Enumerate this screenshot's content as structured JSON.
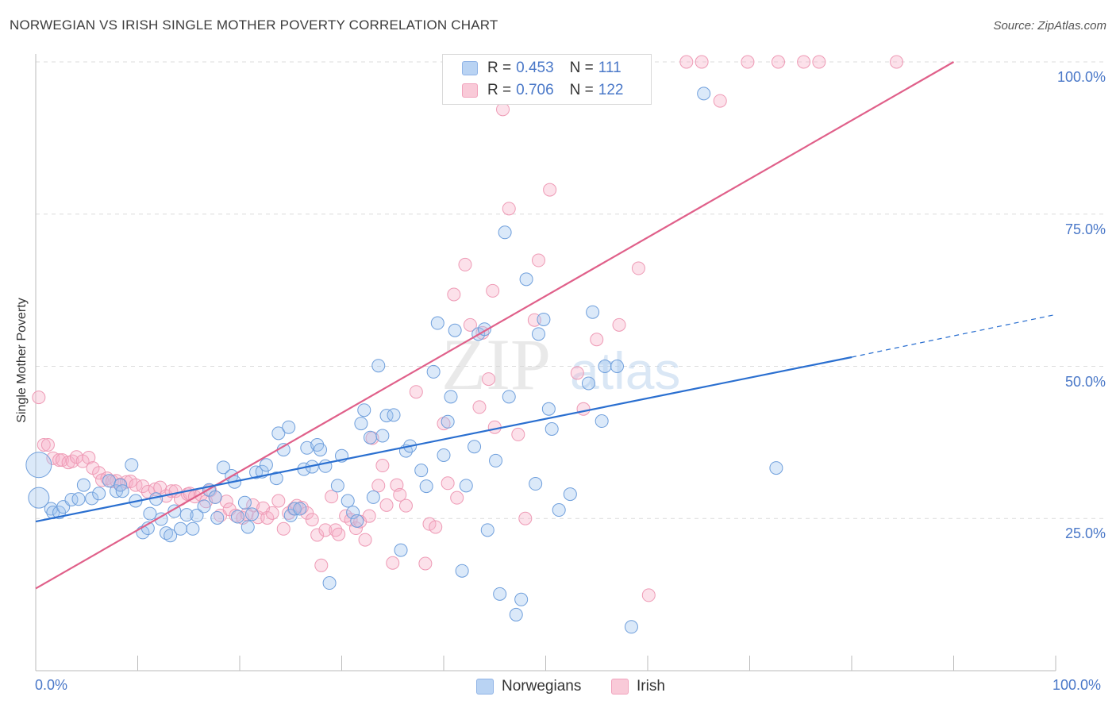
{
  "title": "NORWEGIAN VS IRISH SINGLE MOTHER POVERTY CORRELATION CHART",
  "source": "Source: ZipAtlas.com",
  "watermark": {
    "zip": "ZIP",
    "atlas": "atlas"
  },
  "legend": {
    "rows": [
      {
        "r_label": "R =",
        "r_value": "0.453",
        "n_label": "N =",
        "n_value": "111",
        "color": "#a9c8f0"
      },
      {
        "r_label": "R =",
        "r_value": "0.706",
        "n_label": "N =",
        "n_value": "122",
        "color": "#f6b8cc"
      }
    ]
  },
  "bottom_legend": [
    {
      "label": "Norwegians",
      "color": "#a9c8f0"
    },
    {
      "label": "Irish",
      "color": "#f6b8cc"
    }
  ],
  "chart_data": {
    "type": "scatter",
    "title": "NORWEGIAN VS IRISH SINGLE MOTHER POVERTY CORRELATION CHART",
    "xlabel": "",
    "ylabel": "Single Mother Poverty",
    "xlim": [
      0,
      100
    ],
    "ylim": [
      0,
      100
    ],
    "x_tick_labels": [
      "0.0%",
      "100.0%"
    ],
    "y_tick_labels": [
      "25.0%",
      "50.0%",
      "75.0%",
      "100.0%"
    ],
    "y_ticks": [
      25,
      50,
      75,
      100
    ],
    "grid": true,
    "colors": {
      "norwegians": "#6fa0e0",
      "irish": "#ee90ae",
      "norwegians_line": "#2a6fd0",
      "irish_line": "#e0608a"
    },
    "series": [
      {
        "name": "Norwegians",
        "trend": {
          "x0": 0,
          "y0": 24.5,
          "x1": 80,
          "y1": 51.5,
          "dashed_to_x": 100,
          "dashed_to_y": 58.5
        },
        "points": [
          [
            0.3,
            33.8
          ],
          [
            0.3,
            28.4
          ],
          [
            1.5,
            26.6
          ],
          [
            1.7,
            26.0
          ],
          [
            2.3,
            26.0
          ],
          [
            2.7,
            26.9
          ],
          [
            3.5,
            28.1
          ],
          [
            4.2,
            28.2
          ],
          [
            4.7,
            30.5
          ],
          [
            5.5,
            28.3
          ],
          [
            6.2,
            29.1
          ],
          [
            7.2,
            31.2
          ],
          [
            7.9,
            29.5
          ],
          [
            8.3,
            30.5
          ],
          [
            8.5,
            29.5
          ],
          [
            9.4,
            33.8
          ],
          [
            9.8,
            27.9
          ],
          [
            10.5,
            22.7
          ],
          [
            11.0,
            23.4
          ],
          [
            11.2,
            25.8
          ],
          [
            11.8,
            28.2
          ],
          [
            12.3,
            24.9
          ],
          [
            12.8,
            22.6
          ],
          [
            13.2,
            22.2
          ],
          [
            13.6,
            26.2
          ],
          [
            14.2,
            23.3
          ],
          [
            14.8,
            25.6
          ],
          [
            15.4,
            23.3
          ],
          [
            15.8,
            25.5
          ],
          [
            16.5,
            27.0
          ],
          [
            17.0,
            29.7
          ],
          [
            17.6,
            28.5
          ],
          [
            17.8,
            25.1
          ],
          [
            18.4,
            33.4
          ],
          [
            19.2,
            32.0
          ],
          [
            19.5,
            31.0
          ],
          [
            19.8,
            25.3
          ],
          [
            20.5,
            27.6
          ],
          [
            20.8,
            23.6
          ],
          [
            21.2,
            25.7
          ],
          [
            21.6,
            32.6
          ],
          [
            22.2,
            32.7
          ],
          [
            22.6,
            33.8
          ],
          [
            23.6,
            31.6
          ],
          [
            23.8,
            39.0
          ],
          [
            24.3,
            36.3
          ],
          [
            24.8,
            40.0
          ],
          [
            25.0,
            25.5
          ],
          [
            25.4,
            26.6
          ],
          [
            25.9,
            26.6
          ],
          [
            26.3,
            33.1
          ],
          [
            26.6,
            36.6
          ],
          [
            27.1,
            33.5
          ],
          [
            27.6,
            37.1
          ],
          [
            27.9,
            36.3
          ],
          [
            28.4,
            33.6
          ],
          [
            28.8,
            14.4
          ],
          [
            29.6,
            30.4
          ],
          [
            30.0,
            35.3
          ],
          [
            30.6,
            27.9
          ],
          [
            31.1,
            26.0
          ],
          [
            31.5,
            24.6
          ],
          [
            31.9,
            40.6
          ],
          [
            32.2,
            42.8
          ],
          [
            32.8,
            38.3
          ],
          [
            33.1,
            28.5
          ],
          [
            33.6,
            50.1
          ],
          [
            34.0,
            38.6
          ],
          [
            34.4,
            41.9
          ],
          [
            35.1,
            42.0
          ],
          [
            35.8,
            19.8
          ],
          [
            36.3,
            36.1
          ],
          [
            36.7,
            36.9
          ],
          [
            37.8,
            32.9
          ],
          [
            38.3,
            30.3
          ],
          [
            39.0,
            49.1
          ],
          [
            39.4,
            57.1
          ],
          [
            40.0,
            35.4
          ],
          [
            40.4,
            40.9
          ],
          [
            40.7,
            45.0
          ],
          [
            41.1,
            55.9
          ],
          [
            41.8,
            16.4
          ],
          [
            42.2,
            30.4
          ],
          [
            43.0,
            36.8
          ],
          [
            43.4,
            55.3
          ],
          [
            44.0,
            56.1
          ],
          [
            44.3,
            23.1
          ],
          [
            45.1,
            34.5
          ],
          [
            45.5,
            12.6
          ],
          [
            46.0,
            72.0
          ],
          [
            46.4,
            45.0
          ],
          [
            47.1,
            9.2
          ],
          [
            47.6,
            11.7
          ],
          [
            48.1,
            64.3
          ],
          [
            49.0,
            30.7
          ],
          [
            49.3,
            55.3
          ],
          [
            49.8,
            57.7
          ],
          [
            50.3,
            43.0
          ],
          [
            50.6,
            39.7
          ],
          [
            51.3,
            26.4
          ],
          [
            52.4,
            29.0
          ],
          [
            54.2,
            47.2
          ],
          [
            54.6,
            58.9
          ],
          [
            55.5,
            41.0
          ],
          [
            55.8,
            50.0
          ],
          [
            57.0,
            50.0
          ],
          [
            58.4,
            7.2
          ],
          [
            65.5,
            94.8
          ],
          [
            72.6,
            33.3
          ]
        ]
      },
      {
        "name": "Irish",
        "trend": {
          "x0": 0,
          "y0": 13.5,
          "x1": 90,
          "y1": 100
        },
        "points": [
          [
            0.3,
            44.9
          ],
          [
            0.8,
            37.1
          ],
          [
            1.2,
            37.1
          ],
          [
            1.7,
            34.9
          ],
          [
            2.3,
            34.6
          ],
          [
            2.6,
            34.6
          ],
          [
            3.2,
            34.2
          ],
          [
            3.6,
            34.4
          ],
          [
            4.0,
            35.1
          ],
          [
            4.6,
            34.4
          ],
          [
            5.2,
            35.0
          ],
          [
            5.6,
            33.3
          ],
          [
            6.2,
            32.5
          ],
          [
            6.5,
            31.3
          ],
          [
            7.0,
            31.6
          ],
          [
            7.5,
            31.1
          ],
          [
            7.9,
            31.2
          ],
          [
            8.3,
            30.6
          ],
          [
            8.9,
            31.0
          ],
          [
            9.3,
            31.1
          ],
          [
            9.8,
            30.5
          ],
          [
            10.5,
            30.3
          ],
          [
            11.0,
            29.4
          ],
          [
            11.7,
            29.8
          ],
          [
            12.2,
            30.1
          ],
          [
            12.8,
            28.7
          ],
          [
            13.3,
            29.5
          ],
          [
            13.7,
            29.5
          ],
          [
            14.2,
            28.2
          ],
          [
            14.9,
            29.0
          ],
          [
            15.1,
            29.1
          ],
          [
            15.6,
            28.6
          ],
          [
            16.2,
            28.9
          ],
          [
            16.7,
            27.8
          ],
          [
            17.1,
            29.6
          ],
          [
            17.6,
            28.5
          ],
          [
            18.1,
            25.5
          ],
          [
            18.7,
            27.8
          ],
          [
            19.0,
            26.5
          ],
          [
            19.6,
            25.5
          ],
          [
            20.3,
            25.1
          ],
          [
            20.7,
            25.7
          ],
          [
            21.3,
            27.2
          ],
          [
            21.8,
            25.2
          ],
          [
            22.3,
            26.7
          ],
          [
            22.7,
            25.1
          ],
          [
            23.2,
            25.9
          ],
          [
            23.8,
            27.9
          ],
          [
            24.3,
            23.3
          ],
          [
            24.8,
            25.9
          ],
          [
            25.3,
            26.6
          ],
          [
            25.6,
            27.1
          ],
          [
            26.1,
            26.8
          ],
          [
            26.6,
            25.9
          ],
          [
            27.1,
            24.8
          ],
          [
            27.6,
            22.3
          ],
          [
            28.0,
            17.3
          ],
          [
            28.4,
            23.1
          ],
          [
            29.0,
            28.6
          ],
          [
            29.4,
            23.1
          ],
          [
            29.7,
            22.4
          ],
          [
            30.4,
            25.4
          ],
          [
            30.9,
            24.8
          ],
          [
            31.4,
            23.4
          ],
          [
            31.8,
            24.5
          ],
          [
            32.3,
            21.5
          ],
          [
            32.7,
            25.4
          ],
          [
            33.0,
            38.2
          ],
          [
            33.6,
            30.4
          ],
          [
            34.0,
            33.7
          ],
          [
            34.4,
            27.2
          ],
          [
            35.0,
            17.7
          ],
          [
            35.4,
            30.5
          ],
          [
            35.7,
            28.9
          ],
          [
            36.3,
            27.1
          ],
          [
            37.3,
            45.8
          ],
          [
            38.2,
            17.6
          ],
          [
            38.6,
            24.1
          ],
          [
            39.2,
            23.6
          ],
          [
            40.0,
            40.6
          ],
          [
            40.4,
            30.8
          ],
          [
            41.0,
            61.8
          ],
          [
            41.3,
            28.4
          ],
          [
            42.1,
            66.7
          ],
          [
            42.6,
            56.8
          ],
          [
            42.9,
            100
          ],
          [
            43.5,
            43.3
          ],
          [
            43.8,
            55.5
          ],
          [
            44.4,
            47.9
          ],
          [
            44.8,
            62.4
          ],
          [
            45.0,
            40.0
          ],
          [
            45.3,
            100
          ],
          [
            45.8,
            92.2
          ],
          [
            46.4,
            75.9
          ],
          [
            47.0,
            100
          ],
          [
            47.3,
            38.8
          ],
          [
            47.8,
            100
          ],
          [
            48.0,
            25.0
          ],
          [
            48.5,
            100
          ],
          [
            48.9,
            57.6
          ],
          [
            49.3,
            67.4
          ],
          [
            49.7,
            100
          ],
          [
            50.4,
            79.0
          ],
          [
            51.0,
            100
          ],
          [
            51.4,
            100
          ],
          [
            53.1,
            48.9
          ],
          [
            53.7,
            43.0
          ],
          [
            54.6,
            100
          ],
          [
            55.0,
            54.4
          ],
          [
            56.1,
            100
          ],
          [
            57.2,
            56.8
          ],
          [
            59.1,
            66.1
          ],
          [
            60.1,
            12.4
          ],
          [
            63.8,
            100
          ],
          [
            65.3,
            100
          ],
          [
            67.1,
            93.6
          ],
          [
            69.8,
            100
          ],
          [
            72.8,
            100
          ],
          [
            75.3,
            100
          ],
          [
            76.8,
            100
          ],
          [
            84.4,
            100
          ]
        ]
      }
    ]
  }
}
